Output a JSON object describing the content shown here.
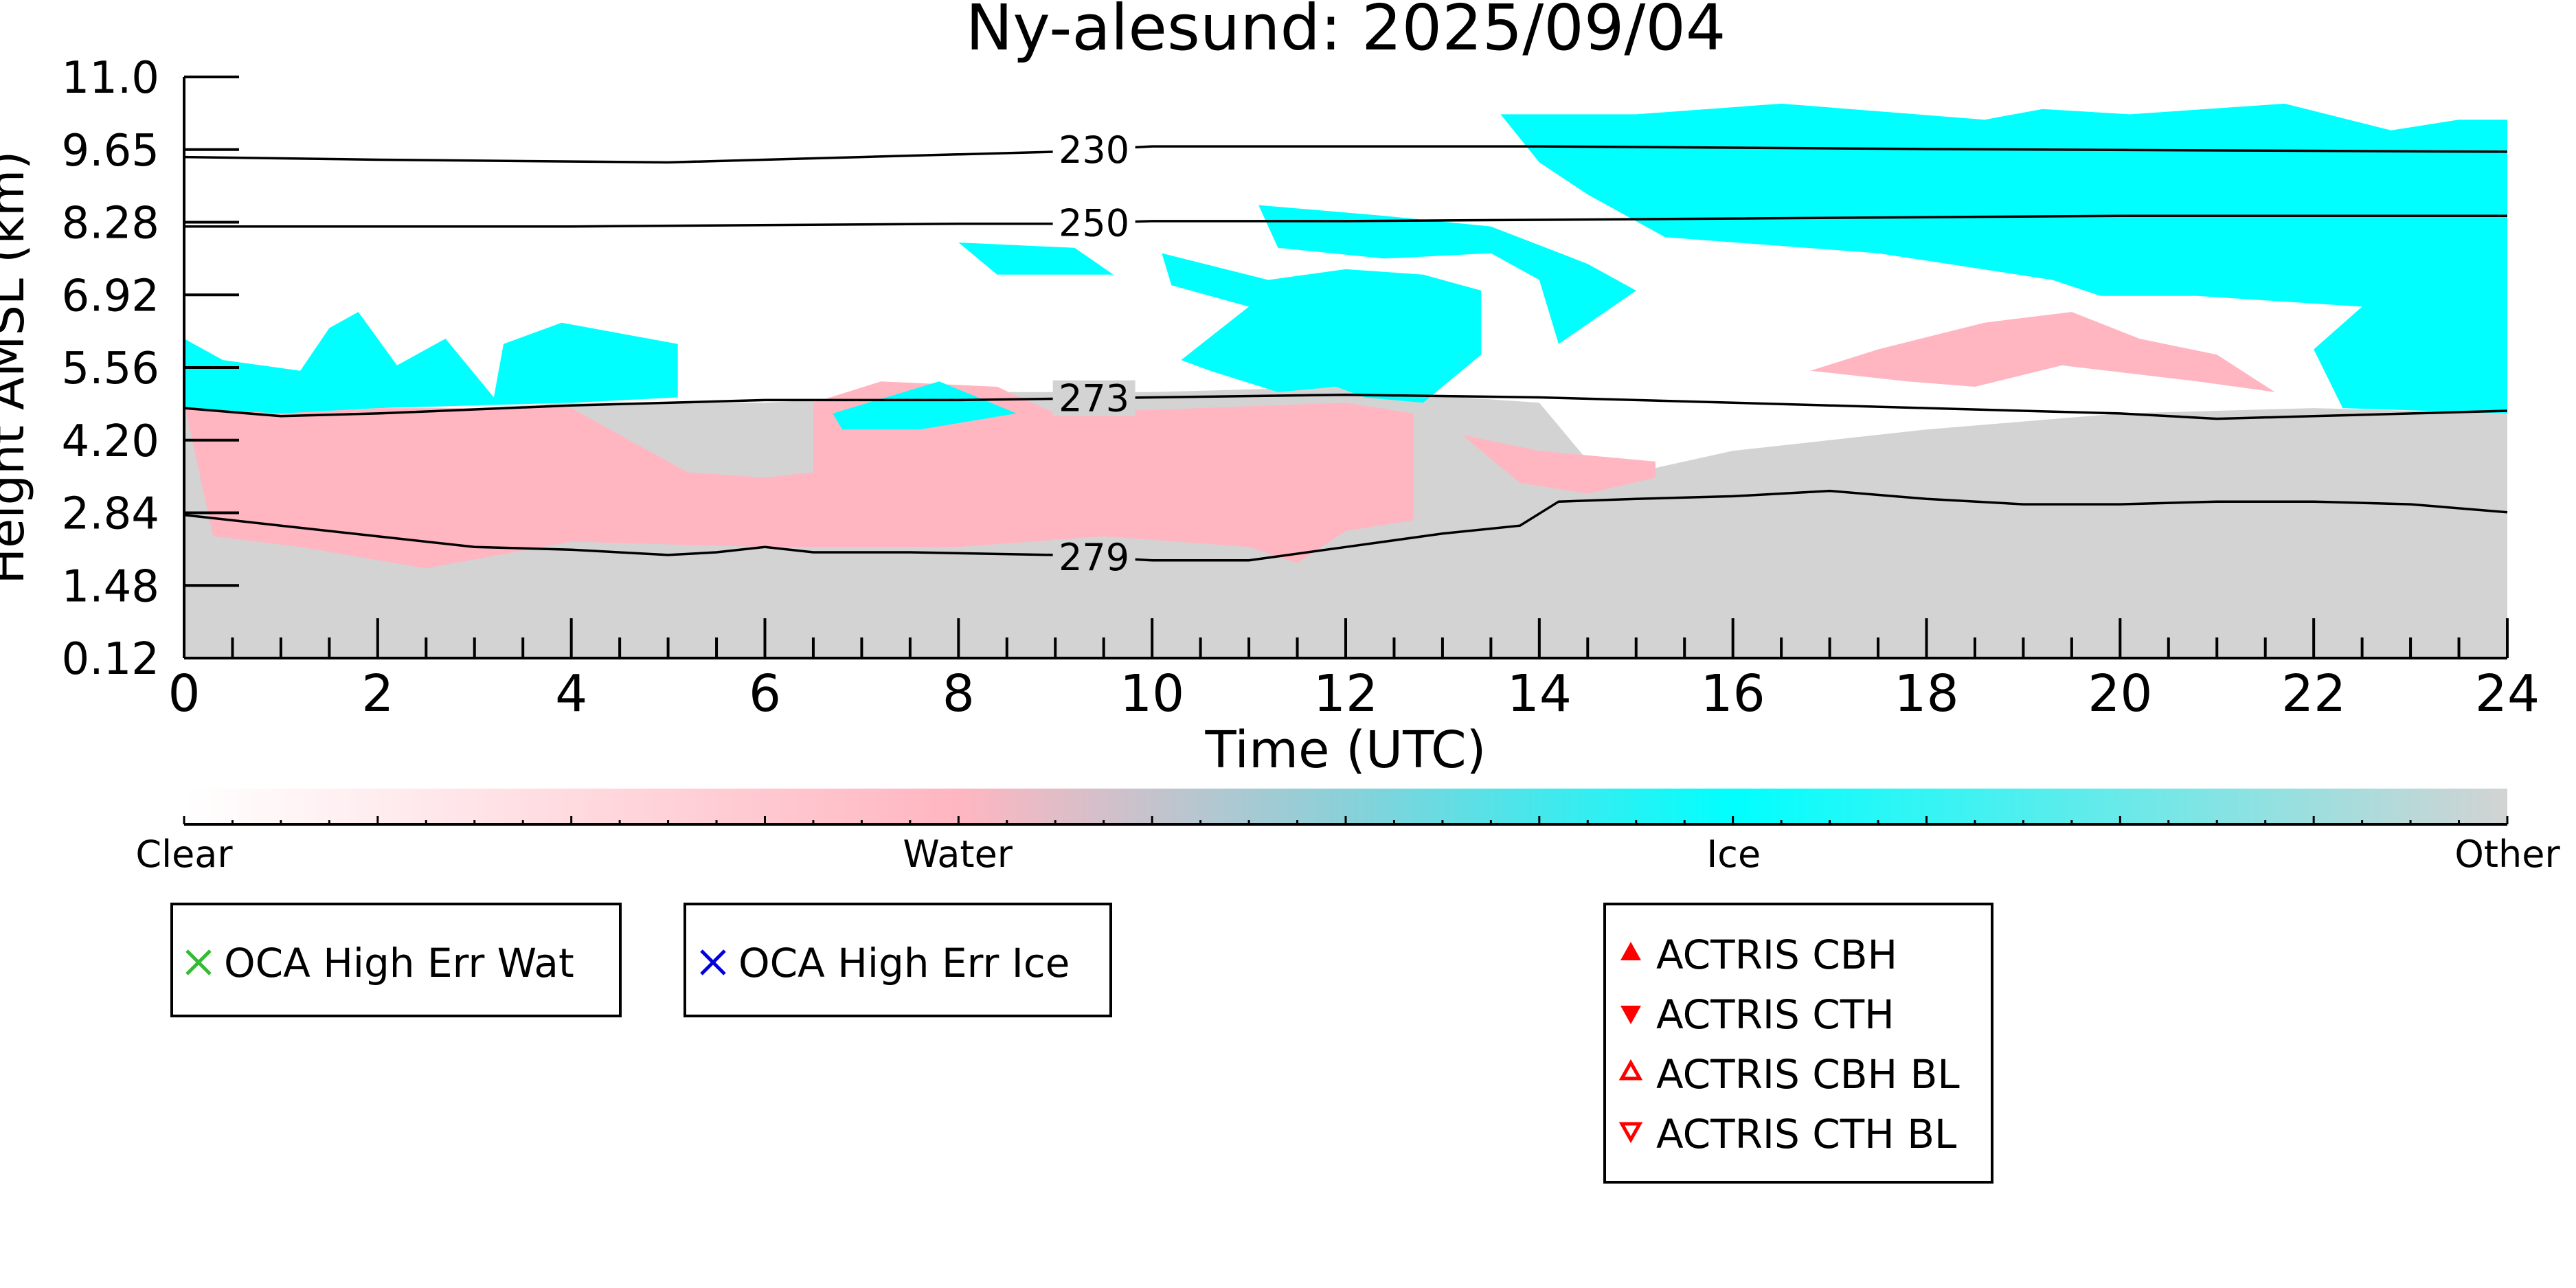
{
  "chart_data": {
    "type": "heatmap",
    "title": "Ny-alesund: 2025/09/04",
    "xlabel": "Time (UTC)",
    "ylabel": "Height AMSL (km)",
    "xlim": [
      0,
      24
    ],
    "ylim": [
      0.12,
      11.0
    ],
    "x_ticks": [
      "0",
      "2",
      "4",
      "6",
      "8",
      "10",
      "12",
      "14",
      "16",
      "18",
      "20",
      "22",
      "24"
    ],
    "y_ticks": [
      "0.12",
      "1.48",
      "2.84",
      "4.20",
      "5.56",
      "6.92",
      "8.28",
      "9.65",
      "11.0"
    ],
    "grid": false,
    "categories": [
      "Clear",
      "Water",
      "Ice",
      "Other"
    ],
    "colors": {
      "clear": "#ffffff",
      "water": "#ffb6c1",
      "ice": "#00ffff",
      "other": "#d3d3d3",
      "contour": "#000000",
      "oca_wat": "#33bb33",
      "oca_ice": "#0000dd",
      "actris": "#ff0000"
    },
    "regions": [
      {
        "class": "other",
        "points": [
          [
            0,
            0.12
          ],
          [
            24,
            0.12
          ],
          [
            24,
            4.7
          ],
          [
            22,
            4.8
          ],
          [
            20,
            4.7
          ],
          [
            18,
            4.4
          ],
          [
            16,
            4.0
          ],
          [
            15,
            3.6
          ],
          [
            14.6,
            3.6
          ],
          [
            14,
            4.9
          ],
          [
            13.2,
            5.0
          ],
          [
            12,
            5.2
          ],
          [
            10,
            5.1
          ],
          [
            8,
            5.1
          ],
          [
            6,
            4.9
          ],
          [
            4,
            4.9
          ],
          [
            2,
            4.7
          ],
          [
            0,
            4.8
          ]
        ]
      },
      {
        "class": "water",
        "points": [
          [
            0,
            4.9
          ],
          [
            0.3,
            2.4
          ],
          [
            1.2,
            2.2
          ],
          [
            2.5,
            1.8
          ],
          [
            4,
            2.3
          ],
          [
            6,
            2.2
          ],
          [
            8,
            2.2
          ],
          [
            9.5,
            2.4
          ],
          [
            11,
            2.2
          ],
          [
            11.5,
            1.9
          ],
          [
            12,
            2.5
          ],
          [
            12.7,
            2.7
          ],
          [
            12.7,
            4.7
          ],
          [
            12,
            4.9
          ],
          [
            9,
            4.7
          ],
          [
            8.4,
            5.2
          ],
          [
            7.2,
            5.3
          ],
          [
            6.5,
            4.9
          ],
          [
            6.5,
            3.6
          ],
          [
            6,
            3.5
          ],
          [
            5.2,
            3.6
          ],
          [
            4.6,
            4.2
          ],
          [
            4,
            4.8
          ],
          [
            2,
            4.8
          ],
          [
            1,
            4.7
          ]
        ]
      },
      {
        "class": "water",
        "points": [
          [
            13.2,
            4.3
          ],
          [
            13.8,
            3.4
          ],
          [
            14.5,
            3.2
          ],
          [
            15.2,
            3.5
          ],
          [
            15.2,
            3.8
          ],
          [
            14,
            4.0
          ]
        ]
      },
      {
        "class": "water",
        "points": [
          [
            16.8,
            5.5
          ],
          [
            17.5,
            5.9
          ],
          [
            18.6,
            6.4
          ],
          [
            19.5,
            6.6
          ],
          [
            20.2,
            6.1
          ],
          [
            21,
            5.8
          ],
          [
            21.6,
            5.1
          ],
          [
            20.8,
            5.3
          ],
          [
            19.4,
            5.6
          ],
          [
            18.5,
            5.2
          ],
          [
            17.8,
            5.3
          ]
        ]
      },
      {
        "class": "ice",
        "points": [
          [
            0,
            6.1
          ],
          [
            0.4,
            5.7
          ],
          [
            1.2,
            5.5
          ],
          [
            1.5,
            6.3
          ],
          [
            1.8,
            6.6
          ],
          [
            2.2,
            5.6
          ],
          [
            2.7,
            6.1
          ],
          [
            3.2,
            5.0
          ],
          [
            3.3,
            6.0
          ],
          [
            3.9,
            6.4
          ],
          [
            4.5,
            6.2
          ],
          [
            5.1,
            6.0
          ],
          [
            5.1,
            5.0
          ],
          [
            4,
            4.9
          ],
          [
            2,
            4.8
          ],
          [
            1,
            4.7
          ],
          [
            0,
            4.8
          ]
        ]
      },
      {
        "class": "ice",
        "points": [
          [
            6.7,
            4.7
          ],
          [
            7.8,
            5.3
          ],
          [
            8.6,
            4.7
          ],
          [
            7.6,
            4.4
          ],
          [
            6.8,
            4.4
          ]
        ]
      },
      {
        "class": "ice",
        "points": [
          [
            8.0,
            7.9
          ],
          [
            9.2,
            7.8
          ],
          [
            9.6,
            7.3
          ],
          [
            8.4,
            7.3
          ]
        ]
      },
      {
        "class": "ice",
        "points": [
          [
            10.1,
            7.7
          ],
          [
            11.2,
            7.2
          ],
          [
            12,
            7.4
          ],
          [
            12.8,
            7.3
          ],
          [
            13.4,
            7.0
          ],
          [
            13.4,
            5.8
          ],
          [
            12.8,
            4.9
          ],
          [
            12.2,
            5.0
          ],
          [
            11.9,
            5.2
          ],
          [
            11.3,
            5.1
          ],
          [
            10.6,
            5.5
          ],
          [
            10.3,
            5.7
          ],
          [
            11.0,
            6.7
          ],
          [
            10.2,
            7.1
          ]
        ]
      },
      {
        "class": "ice",
        "points": [
          [
            11.1,
            8.6
          ],
          [
            12.4,
            8.4
          ],
          [
            13.5,
            8.2
          ],
          [
            14.5,
            7.5
          ],
          [
            15.0,
            7.0
          ],
          [
            14.2,
            6.0
          ],
          [
            14.0,
            7.2
          ],
          [
            13.5,
            7.7
          ],
          [
            12.4,
            7.6
          ],
          [
            11.3,
            7.8
          ]
        ]
      },
      {
        "class": "ice",
        "points": [
          [
            13.6,
            10.3
          ],
          [
            15.0,
            10.3
          ],
          [
            16.5,
            10.5
          ],
          [
            18.6,
            10.2
          ],
          [
            19.2,
            10.4
          ],
          [
            20.1,
            10.3
          ],
          [
            21.7,
            10.5
          ],
          [
            22.8,
            10.0
          ],
          [
            23.5,
            10.2
          ],
          [
            24,
            10.2
          ],
          [
            24,
            4.7
          ],
          [
            22.3,
            4.8
          ],
          [
            22.0,
            5.9
          ],
          [
            22.5,
            6.7
          ],
          [
            20.8,
            6.9
          ],
          [
            19.8,
            6.9
          ],
          [
            19.3,
            7.2
          ],
          [
            17.5,
            7.7
          ],
          [
            15.3,
            8.0
          ],
          [
            14.5,
            8.8
          ],
          [
            14.0,
            9.4
          ]
        ]
      }
    ],
    "contours": [
      {
        "label": "230",
        "label_x": 9.4,
        "points": [
          [
            0,
            9.5
          ],
          [
            2,
            9.45
          ],
          [
            5,
            9.4
          ],
          [
            7,
            9.5
          ],
          [
            9,
            9.6
          ],
          [
            10,
            9.7
          ],
          [
            14,
            9.7
          ],
          [
            18,
            9.65
          ],
          [
            24,
            9.6
          ]
        ]
      },
      {
        "label": "250",
        "label_x": 9.4,
        "points": [
          [
            0,
            8.2
          ],
          [
            4,
            8.2
          ],
          [
            8,
            8.25
          ],
          [
            9,
            8.25
          ],
          [
            10,
            8.3
          ],
          [
            12,
            8.3
          ],
          [
            16,
            8.35
          ],
          [
            20,
            8.4
          ],
          [
            24,
            8.4
          ]
        ]
      },
      {
        "label": "273",
        "label_x": 9.4,
        "points": [
          [
            0,
            4.8
          ],
          [
            1,
            4.65
          ],
          [
            2,
            4.7
          ],
          [
            4,
            4.85
          ],
          [
            6,
            4.95
          ],
          [
            8,
            4.95
          ],
          [
            10,
            5.0
          ],
          [
            12,
            5.05
          ],
          [
            14,
            5.0
          ],
          [
            16,
            4.9
          ],
          [
            18,
            4.8
          ],
          [
            20,
            4.7
          ],
          [
            21,
            4.6
          ],
          [
            22,
            4.65
          ],
          [
            24,
            4.75
          ]
        ]
      },
      {
        "label": "279",
        "label_x": 9.4,
        "points": [
          [
            0,
            2.8
          ],
          [
            1,
            2.6
          ],
          [
            2,
            2.4
          ],
          [
            3,
            2.2
          ],
          [
            4,
            2.15
          ],
          [
            5,
            2.05
          ],
          [
            5.5,
            2.1
          ],
          [
            6,
            2.2
          ],
          [
            6.5,
            2.1
          ],
          [
            7.5,
            2.1
          ],
          [
            9,
            2.05
          ],
          [
            10,
            1.95
          ],
          [
            11,
            1.95
          ],
          [
            12,
            2.2
          ],
          [
            13,
            2.45
          ],
          [
            13.8,
            2.6
          ],
          [
            14.2,
            3.05
          ],
          [
            15,
            3.1
          ],
          [
            16,
            3.15
          ],
          [
            17,
            3.25
          ],
          [
            18,
            3.1
          ],
          [
            19,
            3.0
          ],
          [
            20,
            3.0
          ],
          [
            21,
            3.05
          ],
          [
            22,
            3.05
          ],
          [
            23,
            3.0
          ],
          [
            24,
            2.85
          ]
        ]
      }
    ],
    "colorbar": {
      "labels": [
        "Clear",
        "Water",
        "Ice",
        "Other"
      ],
      "positions": [
        0,
        0.333,
        0.667,
        1.0
      ]
    }
  },
  "legends": {
    "oca_wat": "OCA High Err Wat",
    "oca_ice": "OCA High Err Ice",
    "actris": [
      "ACTRIS CBH",
      "ACTRIS CTH",
      "ACTRIS CBH BL",
      "ACTRIS CTH BL"
    ],
    "oca_wat_icon": "green-x-marker",
    "oca_ice_icon": "blue-x-marker",
    "actris_icons": [
      "red-filled-up-triangle",
      "red-filled-down-triangle",
      "red-hollow-up-triangle",
      "red-hollow-down-triangle"
    ]
  }
}
